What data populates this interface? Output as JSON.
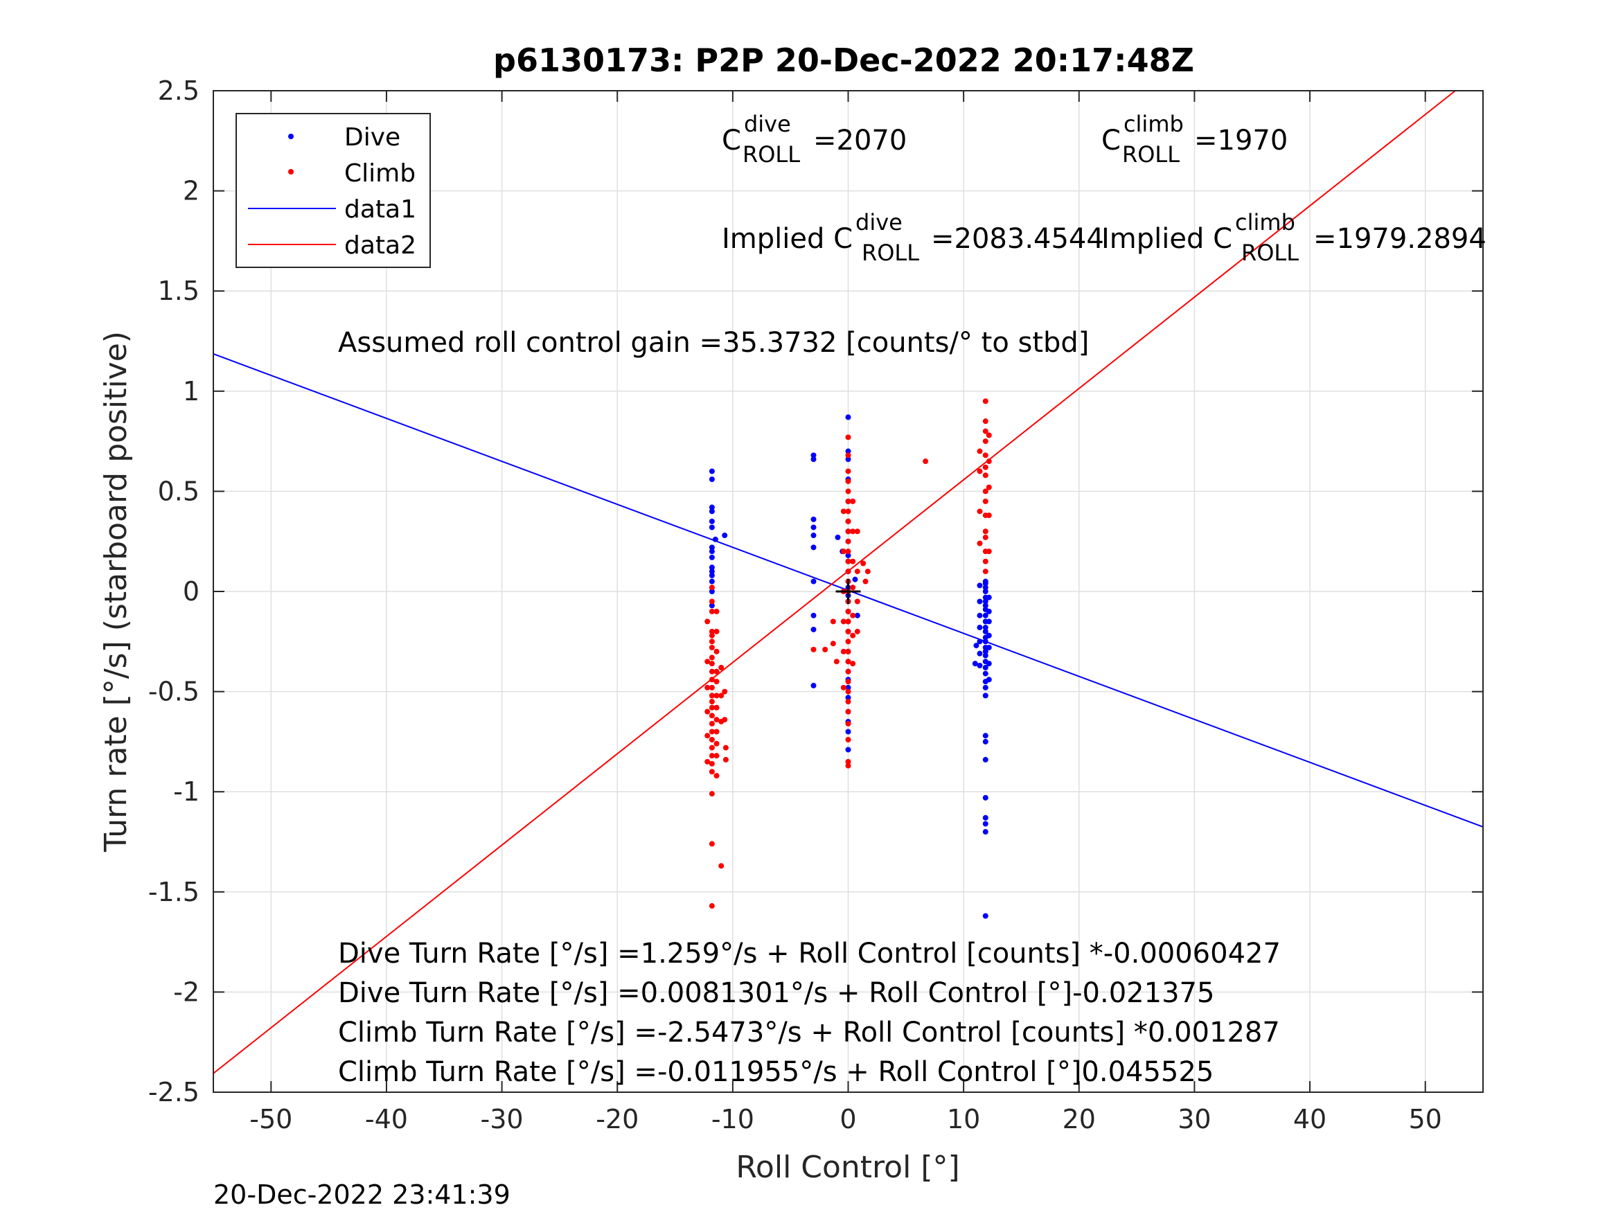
{
  "chart_data": {
    "type": "scatter",
    "title": "p6130173: P2P 20-Dec-2022 20:17:48Z",
    "xlabel": "Roll Control [°]",
    "ylabel": "Turn rate [°/s] (starboard positive)",
    "xlim": [
      -55,
      55
    ],
    "ylim": [
      -2.5,
      2.5
    ],
    "xticks": [
      -50,
      -40,
      -30,
      -20,
      -10,
      0,
      10,
      20,
      30,
      40,
      50
    ],
    "xtick_labels": [
      "-50",
      "-40",
      "-30",
      "-20",
      "-10",
      "0",
      "10",
      "20",
      "30",
      "40",
      "50"
    ],
    "yticks": [
      -2.5,
      -2,
      -1.5,
      -1,
      -0.5,
      0,
      0.5,
      1,
      1.5,
      2,
      2.5
    ],
    "ytick_labels": [
      "-2.5",
      "-2",
      "-1.5",
      "-1",
      "-0.5",
      "0",
      "0.5",
      "1",
      "1.5",
      "2",
      "2.5"
    ],
    "grid": true,
    "legend_position": "top-left",
    "legend": [
      {
        "name": "Dive",
        "kind": "marker",
        "color": "#0000ff"
      },
      {
        "name": "Climb",
        "kind": "marker",
        "color": "#ff0000"
      },
      {
        "name": "data1",
        "kind": "line",
        "color": "#0000ff"
      },
      {
        "name": "data2",
        "kind": "line",
        "color": "#ff0000"
      }
    ],
    "series": [
      {
        "name": "Dive",
        "kind": "scatter",
        "color": "#0000ff",
        "points": [
          [
            -11.8,
            0.6
          ],
          [
            -11.8,
            0.56
          ],
          [
            -11.8,
            0.42
          ],
          [
            -11.8,
            0.4
          ],
          [
            -11.8,
            0.35
          ],
          [
            -11.8,
            0.32
          ],
          [
            -11.8,
            0.22
          ],
          [
            -11.8,
            0.2
          ],
          [
            -11.8,
            0.17
          ],
          [
            -11.8,
            0.12
          ],
          [
            -11.8,
            0.1
          ],
          [
            -11.8,
            0.08
          ],
          [
            -11.8,
            0.05
          ],
          [
            -11.8,
            0.0
          ],
          [
            -11.8,
            -0.07
          ],
          [
            -10.7,
            0.28
          ],
          [
            -11.5,
            0.26
          ],
          [
            -3.0,
            0.68
          ],
          [
            -3.0,
            0.66
          ],
          [
            -3.0,
            0.36
          ],
          [
            -3.0,
            0.32
          ],
          [
            -3.0,
            0.28
          ],
          [
            -3.0,
            0.22
          ],
          [
            -3.0,
            0.05
          ],
          [
            -3.0,
            -0.12
          ],
          [
            -3.0,
            -0.19
          ],
          [
            -3.0,
            -0.47
          ],
          [
            0.0,
            0.87
          ],
          [
            0.0,
            0.7
          ],
          [
            0.0,
            0.66
          ],
          [
            0.0,
            0.56
          ],
          [
            0.0,
            0.45
          ],
          [
            0.0,
            0.35
          ],
          [
            0.0,
            0.3
          ],
          [
            0.0,
            0.25
          ],
          [
            0.0,
            0.18
          ],
          [
            0.0,
            0.15
          ],
          [
            0.0,
            0.1
          ],
          [
            0.0,
            0.05
          ],
          [
            0.0,
            0.02
          ],
          [
            0.0,
            -0.02
          ],
          [
            0.0,
            -0.05
          ],
          [
            0.0,
            -0.1
          ],
          [
            0.0,
            -0.15
          ],
          [
            0.0,
            -0.2
          ],
          [
            0.0,
            -0.3
          ],
          [
            0.0,
            -0.35
          ],
          [
            0.0,
            -0.4
          ],
          [
            0.0,
            -0.44
          ],
          [
            0.0,
            -0.48
          ],
          [
            0.0,
            -0.53
          ],
          [
            0.0,
            -0.6
          ],
          [
            0.0,
            -0.65
          ],
          [
            0.0,
            -0.7
          ],
          [
            0.0,
            -0.79
          ],
          [
            -0.9,
            0.27
          ],
          [
            0.6,
            0.06
          ],
          [
            0.8,
            -0.12
          ],
          [
            -0.5,
            0.2
          ],
          [
            11.9,
            0.05
          ],
          [
            11.9,
            0.04
          ],
          [
            11.9,
            0.02
          ],
          [
            11.9,
            0.0
          ],
          [
            11.9,
            -0.03
          ],
          [
            11.9,
            -0.05
          ],
          [
            11.9,
            -0.07
          ],
          [
            11.9,
            -0.09
          ],
          [
            11.9,
            -0.12
          ],
          [
            11.9,
            -0.15
          ],
          [
            11.9,
            -0.18
          ],
          [
            11.9,
            -0.2
          ],
          [
            11.9,
            -0.23
          ],
          [
            11.9,
            -0.25
          ],
          [
            11.9,
            -0.28
          ],
          [
            11.9,
            -0.3
          ],
          [
            11.9,
            -0.32
          ],
          [
            11.9,
            -0.35
          ],
          [
            11.9,
            -0.38
          ],
          [
            11.9,
            -0.41
          ],
          [
            11.9,
            -0.45
          ],
          [
            11.9,
            -0.48
          ],
          [
            11.9,
            -0.52
          ],
          [
            11.9,
            -0.72
          ],
          [
            11.9,
            -0.75
          ],
          [
            11.9,
            -0.84
          ],
          [
            11.9,
            -1.03
          ],
          [
            11.9,
            -1.13
          ],
          [
            11.9,
            -1.16
          ],
          [
            11.9,
            -1.2
          ],
          [
            11.9,
            -1.62
          ],
          [
            11.4,
            0.03
          ],
          [
            11.4,
            -0.05
          ],
          [
            11.4,
            -0.12
          ],
          [
            11.4,
            -0.18
          ],
          [
            11.4,
            -0.25
          ],
          [
            11.4,
            -0.31
          ],
          [
            11.4,
            -0.37
          ],
          [
            12.2,
            -0.03
          ],
          [
            12.2,
            -0.1
          ],
          [
            12.2,
            -0.15
          ],
          [
            12.2,
            -0.22
          ],
          [
            12.2,
            -0.28
          ],
          [
            12.2,
            -0.36
          ],
          [
            12.2,
            -0.44
          ],
          [
            11.1,
            -0.27
          ],
          [
            11.0,
            -0.36
          ]
        ]
      },
      {
        "name": "Climb",
        "kind": "scatter",
        "color": "#ff0000",
        "points": [
          [
            -11.8,
            0.02
          ],
          [
            -11.8,
            -0.05
          ],
          [
            -11.8,
            -0.1
          ],
          [
            -11.8,
            -0.2
          ],
          [
            -11.8,
            -0.22
          ],
          [
            -11.8,
            -0.25
          ],
          [
            -11.8,
            -0.28
          ],
          [
            -11.8,
            -0.33
          ],
          [
            -11.8,
            -0.36
          ],
          [
            -11.8,
            -0.4
          ],
          [
            -11.8,
            -0.44
          ],
          [
            -11.8,
            -0.48
          ],
          [
            -11.8,
            -0.52
          ],
          [
            -11.8,
            -0.55
          ],
          [
            -11.8,
            -0.58
          ],
          [
            -11.8,
            -0.62
          ],
          [
            -11.8,
            -0.66
          ],
          [
            -11.8,
            -0.7
          ],
          [
            -11.8,
            -0.74
          ],
          [
            -11.8,
            -0.78
          ],
          [
            -11.8,
            -0.82
          ],
          [
            -11.8,
            -0.86
          ],
          [
            -11.8,
            -0.9
          ],
          [
            -11.8,
            -1.01
          ],
          [
            -11.8,
            -1.26
          ],
          [
            -11.8,
            -1.57
          ],
          [
            -11.4,
            -0.1
          ],
          [
            -11.4,
            -0.2
          ],
          [
            -11.4,
            -0.3
          ],
          [
            -11.4,
            -0.4
          ],
          [
            -11.4,
            -0.45
          ],
          [
            -11.4,
            -0.52
          ],
          [
            -11.4,
            -0.58
          ],
          [
            -11.4,
            -0.64
          ],
          [
            -11.4,
            -0.7
          ],
          [
            -11.4,
            -0.76
          ],
          [
            -11.4,
            -0.82
          ],
          [
            -11.4,
            -0.92
          ],
          [
            -12.2,
            -0.15
          ],
          [
            -12.2,
            -0.35
          ],
          [
            -12.2,
            -0.48
          ],
          [
            -12.2,
            -0.6
          ],
          [
            -12.2,
            -0.72
          ],
          [
            -12.2,
            -0.85
          ],
          [
            -11.0,
            -0.38
          ],
          [
            -11.0,
            -0.52
          ],
          [
            -11.0,
            -0.65
          ],
          [
            -10.7,
            -0.5
          ],
          [
            -10.7,
            -0.64
          ],
          [
            -10.6,
            -0.78
          ],
          [
            -10.6,
            -0.84
          ],
          [
            -11.0,
            -1.37
          ],
          [
            0.0,
            0.77
          ],
          [
            0.0,
            0.68
          ],
          [
            0.0,
            0.6
          ],
          [
            0.0,
            0.55
          ],
          [
            0.0,
            0.5
          ],
          [
            0.0,
            0.45
          ],
          [
            0.0,
            0.4
          ],
          [
            0.0,
            0.35
          ],
          [
            0.0,
            0.3
          ],
          [
            0.0,
            0.25
          ],
          [
            0.0,
            0.2
          ],
          [
            0.0,
            0.15
          ],
          [
            0.0,
            0.1
          ],
          [
            0.0,
            0.05
          ],
          [
            0.0,
            0.0
          ],
          [
            0.0,
            -0.05
          ],
          [
            0.0,
            -0.1
          ],
          [
            0.0,
            -0.15
          ],
          [
            0.0,
            -0.2
          ],
          [
            0.0,
            -0.25
          ],
          [
            0.0,
            -0.3
          ],
          [
            0.0,
            -0.35
          ],
          [
            0.0,
            -0.4
          ],
          [
            0.0,
            -0.45
          ],
          [
            0.0,
            -0.5
          ],
          [
            0.0,
            -0.55
          ],
          [
            0.0,
            -0.6
          ],
          [
            0.0,
            -0.66
          ],
          [
            0.0,
            -0.74
          ],
          [
            0.0,
            -0.85
          ],
          [
            0.0,
            -0.87
          ],
          [
            -0.4,
            0.4
          ],
          [
            -0.4,
            0.2
          ],
          [
            -0.4,
            0.0
          ],
          [
            -0.4,
            -0.15
          ],
          [
            -0.4,
            -0.3
          ],
          [
            -0.4,
            -0.48
          ],
          [
            0.4,
            0.45
          ],
          [
            0.4,
            0.3
          ],
          [
            0.4,
            0.15
          ],
          [
            0.4,
            0.02
          ],
          [
            0.4,
            -0.12
          ],
          [
            0.4,
            -0.22
          ],
          [
            0.4,
            -0.36
          ],
          [
            0.8,
            0.3
          ],
          [
            0.8,
            0.1
          ],
          [
            0.8,
            -0.05
          ],
          [
            0.8,
            -0.2
          ],
          [
            1.3,
            0.14
          ],
          [
            1.5,
            0.05
          ],
          [
            1.7,
            0.1
          ],
          [
            -1.3,
            -0.15
          ],
          [
            -1.3,
            -0.26
          ],
          [
            -2.0,
            -0.29
          ],
          [
            -3.0,
            -0.29
          ],
          [
            -1.0,
            -0.35
          ],
          [
            6.7,
            0.65
          ],
          [
            11.9,
            0.95
          ],
          [
            11.9,
            0.85
          ],
          [
            11.9,
            0.8
          ],
          [
            11.9,
            0.75
          ],
          [
            11.9,
            0.68
          ],
          [
            11.9,
            0.62
          ],
          [
            11.9,
            0.58
          ],
          [
            11.9,
            0.5
          ],
          [
            11.9,
            0.45
          ],
          [
            11.9,
            0.38
          ],
          [
            11.9,
            0.3
          ],
          [
            11.9,
            0.27
          ],
          [
            11.9,
            0.2
          ],
          [
            11.9,
            0.15
          ],
          [
            11.9,
            0.1
          ],
          [
            11.4,
            0.7
          ],
          [
            11.4,
            0.6
          ],
          [
            11.4,
            0.4
          ],
          [
            11.4,
            0.24
          ],
          [
            12.2,
            0.78
          ],
          [
            12.2,
            0.65
          ],
          [
            12.2,
            0.52
          ],
          [
            12.2,
            0.38
          ],
          [
            12.2,
            0.2
          ]
        ]
      },
      {
        "name": "data1",
        "kind": "line",
        "color": "#0000ff",
        "x": [
          -55,
          55
        ],
        "y": [
          1.1862,
          -1.1753
        ]
      },
      {
        "name": "data2",
        "kind": "line",
        "color": "#ff0000",
        "x": [
          -55,
          52.6
        ],
        "y": [
          -2.4063,
          2.5
        ]
      }
    ],
    "origin_marker": {
      "x": 0,
      "y": 0,
      "color": "#000000"
    },
    "annotations": {
      "c_dive": {
        "base": "C",
        "sup": "dive",
        "sub": "ROLL",
        "value": "=2070"
      },
      "c_climb": {
        "base": "C",
        "sup": "climb",
        "sub": "ROLL",
        "value": "=1970"
      },
      "implied_dive": {
        "base": "Implied C",
        "sup": "dive",
        "sub": "ROLL",
        "value": "=2083.4544"
      },
      "implied_climb": {
        "base": "Implied C",
        "sup": "climb",
        "sub": "ROLL",
        "value": "=1979.2894"
      },
      "gain": "Assumed roll control gain =35.3732 [counts/° to stbd]",
      "fits": [
        "Dive Turn Rate [°/s] =1.259°/s + Roll Control [counts] *-0.00060427",
        "Dive Turn Rate [°/s] =0.0081301°/s + Roll Control [°]-0.021375",
        "Climb Turn Rate [°/s] =-2.5473°/s + Roll Control [counts] *0.001287",
        "Climb Turn Rate [°/s] =-0.011955°/s + Roll Control [°]0.045525"
      ]
    },
    "footer_timestamp": "20-Dec-2022 23:41:39"
  }
}
